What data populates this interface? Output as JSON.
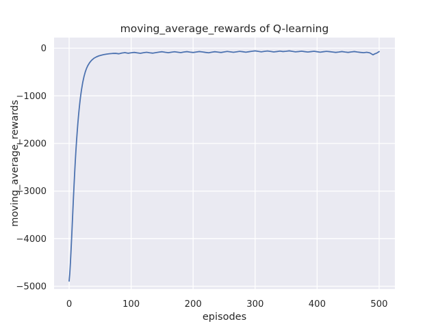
{
  "figure": {
    "background_color": "#ffffff"
  },
  "chart_data": {
    "type": "line",
    "style": "seaborn-darkgrid",
    "title": "moving_average_rewards of Q-learning",
    "xlabel": "episodes",
    "ylabel": "moving_average_rewards",
    "xlim": [
      -24.3,
      525.4
    ],
    "ylim": [
      -5057,
      222
    ],
    "xticks": [
      0,
      100,
      200,
      300,
      400,
      500
    ],
    "yticks": [
      0,
      -1000,
      -2000,
      -3000,
      -4000,
      -5000
    ],
    "grid": true,
    "legend_position": "none",
    "colors": {
      "axes_background": "#eaeaf2",
      "gridline": "#ffffff",
      "line": "#4c72b0",
      "text": "#262626"
    },
    "series": [
      {
        "name": "moving_average_rewards",
        "x": [
          0,
          1,
          2,
          3,
          4,
          5,
          6,
          7,
          8,
          9,
          10,
          11,
          12,
          13,
          14,
          15,
          16,
          17,
          18,
          19,
          20,
          22,
          24,
          26,
          28,
          30,
          33,
          36,
          40,
          44,
          48,
          52,
          56,
          60,
          65,
          70,
          75,
          80,
          85,
          90,
          95,
          100,
          105,
          110,
          115,
          120,
          125,
          130,
          135,
          140,
          145,
          150,
          155,
          160,
          165,
          170,
          175,
          180,
          185,
          190,
          195,
          200,
          205,
          210,
          215,
          220,
          225,
          230,
          235,
          240,
          245,
          250,
          255,
          260,
          265,
          270,
          275,
          280,
          285,
          290,
          295,
          300,
          305,
          310,
          315,
          320,
          325,
          330,
          335,
          340,
          345,
          350,
          355,
          360,
          365,
          370,
          375,
          380,
          385,
          390,
          395,
          400,
          405,
          410,
          415,
          420,
          425,
          430,
          435,
          440,
          445,
          450,
          455,
          460,
          465,
          470,
          475,
          480,
          485,
          490,
          493,
          496,
          500
        ],
        "y": [
          -4890,
          -4740,
          -4520,
          -4270,
          -4000,
          -3710,
          -3420,
          -3130,
          -2860,
          -2600,
          -2360,
          -2140,
          -1940,
          -1760,
          -1590,
          -1440,
          -1300,
          -1175,
          -1060,
          -960,
          -870,
          -715,
          -595,
          -500,
          -427,
          -370,
          -305,
          -258,
          -212,
          -183,
          -162,
          -147,
          -135,
          -126,
          -117,
          -111,
          -109,
          -118,
          -103,
          -93,
          -107,
          -97,
          -89,
          -99,
          -108,
          -96,
          -86,
          -97,
          -105,
          -93,
          -83,
          -75,
          -87,
          -96,
          -85,
          -76,
          -85,
          -93,
          -81,
          -73,
          -83,
          -91,
          -81,
          -71,
          -79,
          -89,
          -97,
          -85,
          -75,
          -83,
          -91,
          -79,
          -69,
          -77,
          -87,
          -77,
          -67,
          -75,
          -85,
          -75,
          -65,
          -57,
          -67,
          -77,
          -67,
          -59,
          -69,
          -79,
          -71,
          -61,
          -71,
          -65,
          -57,
          -67,
          -77,
          -71,
          -63,
          -73,
          -81,
          -73,
          -65,
          -75,
          -85,
          -75,
          -67,
          -73,
          -81,
          -89,
          -81,
          -71,
          -81,
          -89,
          -79,
          -71,
          -81,
          -89,
          -95,
          -87,
          -99,
          -139,
          -119,
          -105,
          -72
        ]
      }
    ]
  }
}
